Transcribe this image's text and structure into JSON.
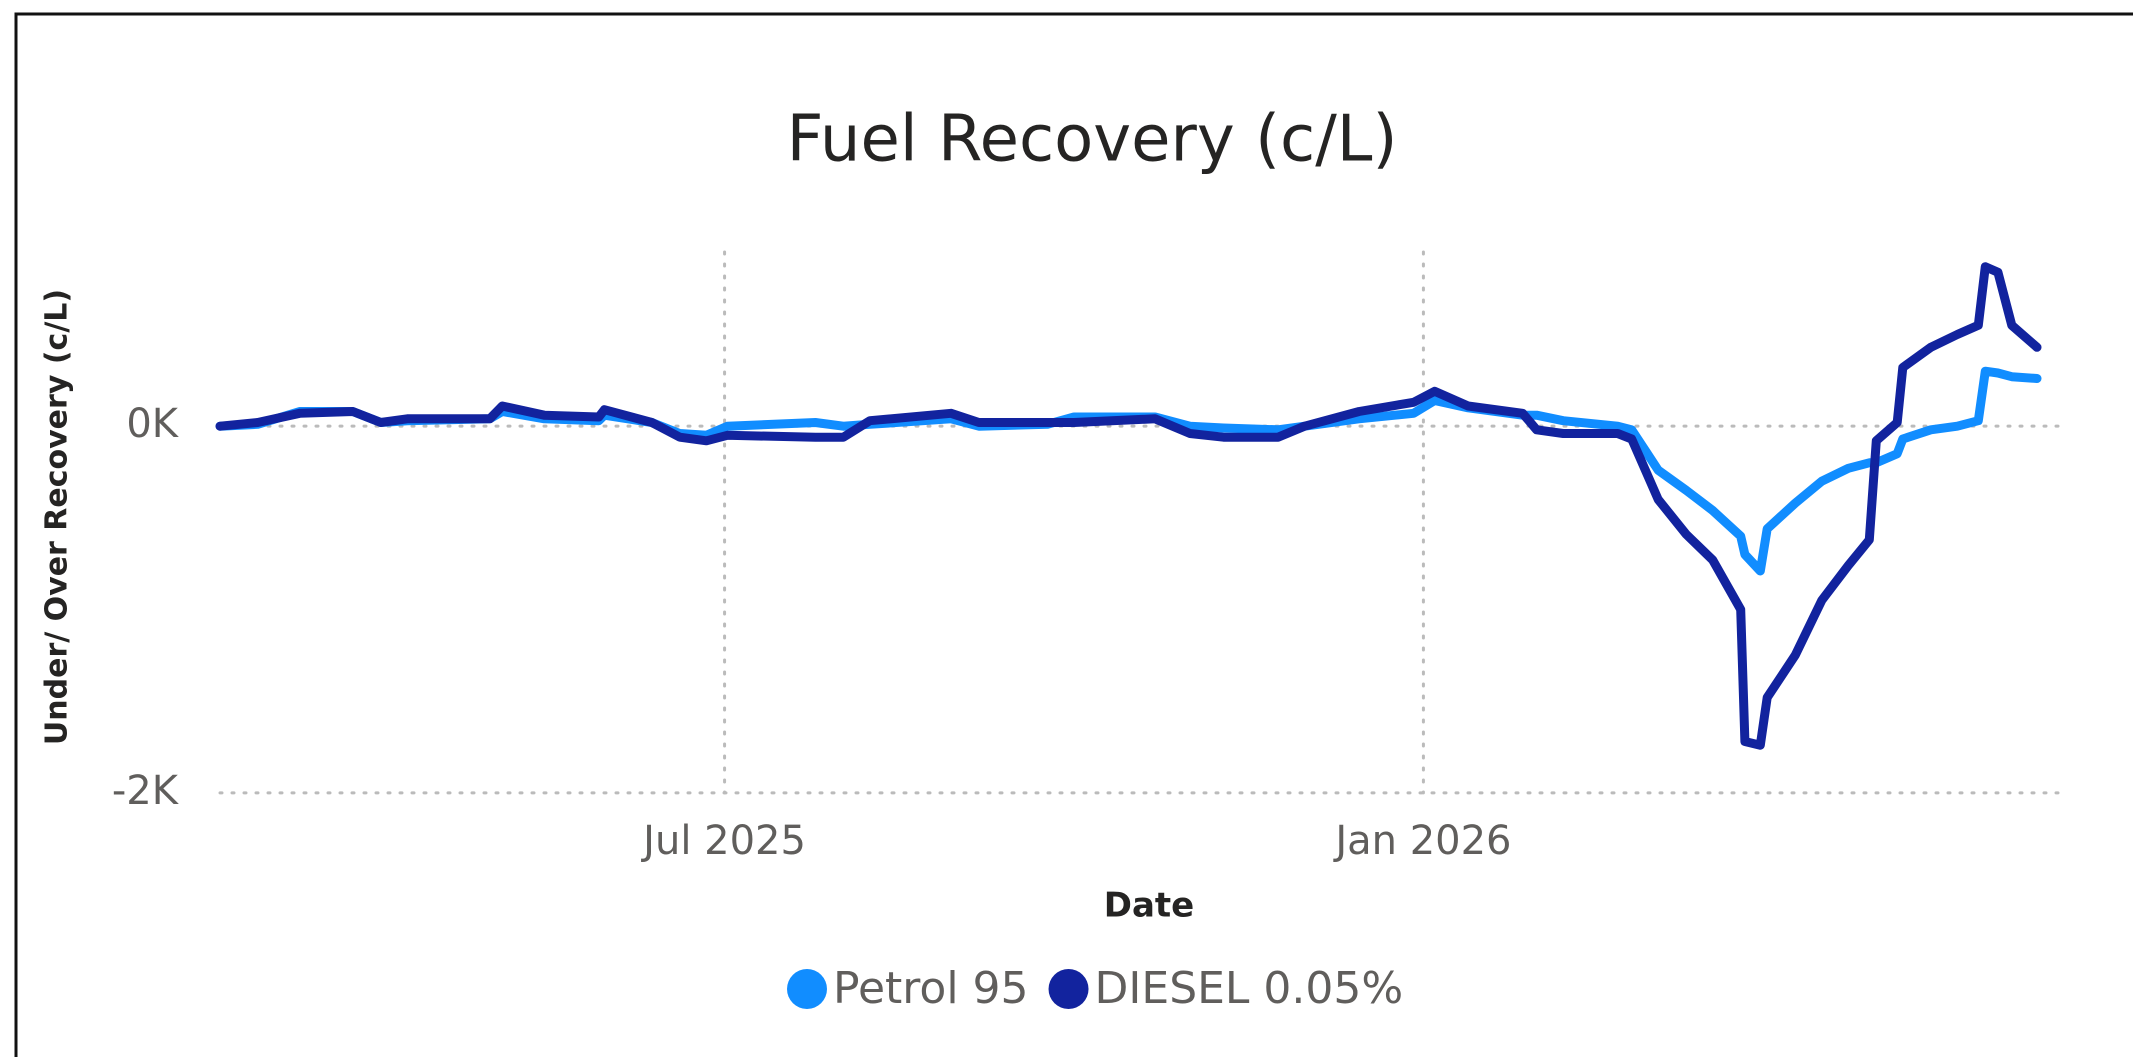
{
  "chart_data": {
    "type": "line",
    "title": "Fuel Recovery (c/L)",
    "x_label": "Date",
    "y_label": "Under/ Over Recovery (c/L)",
    "x": [
      2025.139,
      2025.166,
      2025.196,
      2025.234,
      2025.254,
      2025.273,
      2025.332,
      2025.341,
      2025.371,
      2025.41,
      2025.414,
      2025.448,
      2025.468,
      2025.487,
      2025.502,
      2025.565,
      2025.585,
      2025.604,
      2025.662,
      2025.682,
      2025.731,
      2025.75,
      2025.808,
      2025.833,
      2025.857,
      2025.896,
      2025.915,
      2025.954,
      2025.993,
      2026.008,
      2026.032,
      2026.071,
      2026.081,
      2026.1,
      2026.139,
      2026.149,
      2026.168,
      2026.188,
      2026.207,
      2026.227,
      2026.23,
      2026.241,
      2026.246,
      2026.266,
      2026.285,
      2026.304,
      2026.319,
      2026.324,
      2026.339,
      2026.343,
      2026.363,
      2026.382,
      2026.397,
      2026.402,
      2026.411,
      2026.421,
      2026.439
    ],
    "series": [
      {
        "name": "Petrol 95",
        "color": "#118dff",
        "values": [
          0,
          10,
          80,
          80,
          20,
          30,
          40,
          80,
          40,
          30,
          60,
          20,
          -40,
          -50,
          0,
          20,
          0,
          10,
          40,
          0,
          10,
          50,
          50,
          0,
          -10,
          -20,
          0,
          40,
          70,
          140,
          100,
          60,
          60,
          30,
          0,
          -20,
          -240,
          -350,
          -460,
          -600,
          -700,
          -790,
          -560,
          -420,
          -300,
          -230,
          -200,
          -200,
          -150,
          -70,
          -20,
          0,
          30,
          300,
          290,
          270,
          260
        ]
      },
      {
        "name": "DIESEL 0.05%",
        "color": "#12239e",
        "values": [
          0,
          20,
          70,
          80,
          20,
          40,
          40,
          110,
          60,
          50,
          90,
          20,
          -60,
          -80,
          -50,
          -60,
          -60,
          30,
          70,
          20,
          20,
          20,
          40,
          -40,
          -60,
          -60,
          0,
          80,
          130,
          190,
          110,
          70,
          -20,
          -40,
          -40,
          -70,
          -400,
          -590,
          -730,
          -1000,
          -1720,
          -1740,
          -1480,
          -1250,
          -950,
          -760,
          -620,
          -80,
          20,
          320,
          430,
          500,
          550,
          870,
          840,
          550,
          430
        ]
      }
    ],
    "xlim": [
      2025.139,
      2026.439
    ],
    "xticks": [
      {
        "value": 2025.5,
        "label": "Jul 2025"
      },
      {
        "value": 2026.0,
        "label": "Jan 2026"
      }
    ],
    "ylim": [
      -2050,
      950
    ],
    "yticks": [
      {
        "value": 0,
        "label": "0K"
      },
      {
        "value": -2000,
        "label": "-2K"
      }
    ],
    "grid": true,
    "legend": "bottom"
  }
}
